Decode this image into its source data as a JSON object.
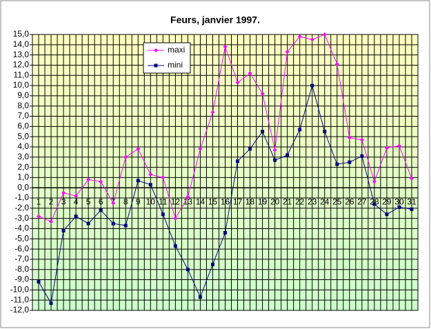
{
  "chart_data": {
    "type": "line",
    "title": "Feurs, janvier 1997.",
    "categories": [
      "1",
      "2",
      "3",
      "4",
      "5",
      "6",
      "7",
      "8",
      "9",
      "10",
      "11",
      "12",
      "13",
      "14",
      "15",
      "16",
      "17",
      "18",
      "19",
      "20",
      "21",
      "22",
      "23",
      "24",
      "25",
      "26",
      "27",
      "28",
      "29",
      "30",
      "31"
    ],
    "series": [
      {
        "name": "maxi",
        "color": "#ff00ff",
        "marker": "diamond",
        "values": [
          -2.8,
          -3.3,
          -0.5,
          -0.8,
          0.8,
          0.6,
          -1.5,
          3.0,
          3.8,
          1.3,
          1.0,
          -3.0,
          -0.9,
          3.8,
          7.4,
          13.8,
          10.3,
          11.2,
          9.2,
          3.7,
          13.3,
          14.8,
          14.5,
          15.0,
          12.1,
          4.9,
          4.7,
          0.6,
          3.9,
          4.1,
          0.9
        ]
      },
      {
        "name": "mini",
        "color": "#000080",
        "marker": "square",
        "values": [
          -9.2,
          -11.3,
          -4.2,
          -2.8,
          -3.5,
          -2.2,
          -3.5,
          -3.7,
          0.7,
          0.3,
          -2.6,
          -5.7,
          -8.0,
          -10.7,
          -7.5,
          -4.4,
          2.6,
          3.8,
          5.5,
          2.7,
          3.2,
          5.7,
          10.0,
          5.5,
          2.3,
          2.5,
          3.1,
          -1.6,
          -2.6,
          -1.9,
          -2.1
        ]
      }
    ],
    "ylim": [
      -12,
      15
    ],
    "yticks": [
      {
        "value": -12,
        "label": "-12,0"
      },
      {
        "value": -11,
        "label": "-11,0"
      },
      {
        "value": -10,
        "label": "-10,0"
      },
      {
        "value": -9,
        "label": "-9,0"
      },
      {
        "value": -8,
        "label": "-8,0"
      },
      {
        "value": -7,
        "label": "-7,0"
      },
      {
        "value": -6,
        "label": "-6,0"
      },
      {
        "value": -5,
        "label": "-5,0"
      },
      {
        "value": -4,
        "label": "-4,0"
      },
      {
        "value": -3,
        "label": "-3,0"
      },
      {
        "value": -2,
        "label": "-2,0"
      },
      {
        "value": -1,
        "label": "-1,0"
      },
      {
        "value": 0,
        "label": "0,0"
      },
      {
        "value": 1,
        "label": "1,0"
      },
      {
        "value": 2,
        "label": "2,0"
      },
      {
        "value": 3,
        "label": "3,0"
      },
      {
        "value": 4,
        "label": "4,0"
      },
      {
        "value": 5,
        "label": "5,0"
      },
      {
        "value": 6,
        "label": "6,0"
      },
      {
        "value": 7,
        "label": "7,0"
      },
      {
        "value": 8,
        "label": "8,0"
      },
      {
        "value": 9,
        "label": "9,0"
      },
      {
        "value": 10,
        "label": "10,0"
      },
      {
        "value": 11,
        "label": "11,0"
      },
      {
        "value": 12,
        "label": "12,0"
      },
      {
        "value": 13,
        "label": "13,0"
      },
      {
        "value": 14,
        "label": "14,0"
      },
      {
        "value": 15,
        "label": "15,0"
      }
    ],
    "grid": true
  }
}
